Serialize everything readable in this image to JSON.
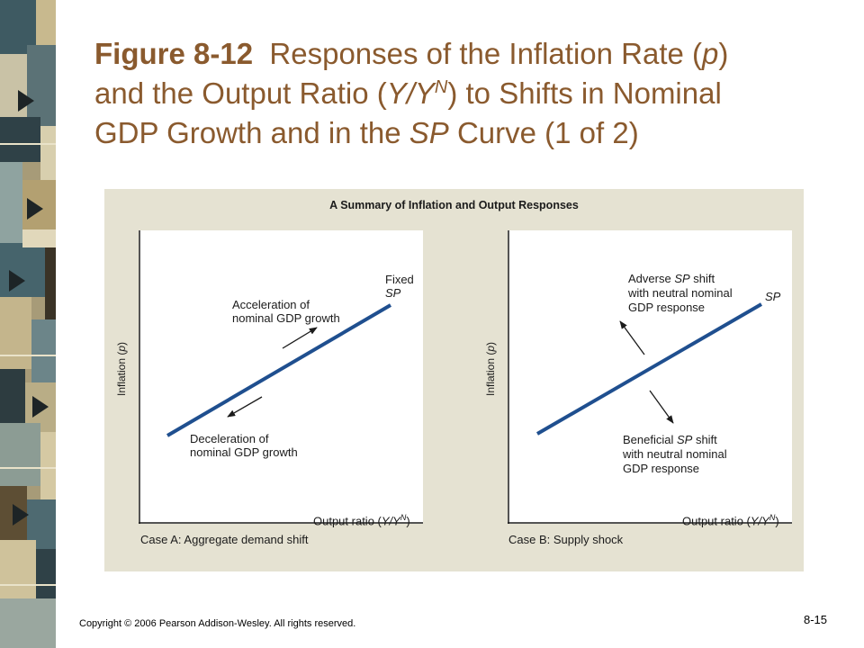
{
  "title": {
    "figure_number": "Figure 8-12",
    "line1_text": "Responses of the Inflation Rate (",
    "line1_p": "p",
    "line1_end": ")",
    "line2_start": "and the Output Ratio (",
    "line2_ratio": "Y/Y",
    "line2_sup": "N",
    "line2_end": ") to Shifts in Nominal",
    "line3_start": "GDP Growth and in the ",
    "line3_sp": "SP",
    "line3_end": " Curve (1 of 2)"
  },
  "figure": {
    "panel_title": "A Summary of Inflation and Output Responses",
    "panel_bg": "#e5e2d2",
    "line_color": "#1f4f8f"
  },
  "case_a": {
    "caption": "Case A: Aggregate demand shift",
    "y_axis": "Inflation (",
    "y_axis_var": "p",
    "y_axis_end": ")",
    "x_axis": "Output ratio (",
    "x_axis_var": "Y/Y",
    "x_axis_sup": "N",
    "x_axis_end": ")",
    "curve_label_1": "Fixed",
    "curve_label_2": "SP",
    "up_arrow_label_1": "Acceleration of",
    "up_arrow_label_2": "nominal GDP growth",
    "down_arrow_label_1": "Deceleration of",
    "down_arrow_label_2": "nominal GDP growth"
  },
  "case_b": {
    "caption": "Case B: Supply shock",
    "y_axis": "Inflation (",
    "y_axis_var": "p",
    "y_axis_end": ")",
    "x_axis": "Output ratio (",
    "x_axis_var": "Y/Y",
    "x_axis_sup": "N",
    "x_axis_end": ")",
    "curve_label": "SP",
    "adverse_1": "Adverse ",
    "adverse_1_sp": "SP",
    "adverse_1_end": " shift",
    "adverse_2": "with neutral nominal",
    "adverse_3": "GDP response",
    "beneficial_1": "Beneficial ",
    "beneficial_1_sp": "SP",
    "beneficial_1_end": " shift",
    "beneficial_2": "with neutral nominal",
    "beneficial_3": "GDP response"
  },
  "footer": {
    "copyright": "Copyright © 2006 Pearson Addison-Wesley. All rights reserved.",
    "page": "8-15"
  }
}
